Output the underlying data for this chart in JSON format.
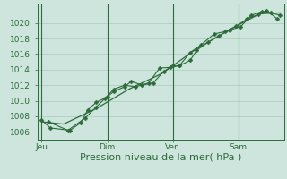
{
  "bg_color": "#cde5dc",
  "grid_color": "#b0cfc5",
  "line_color": "#2d6b3a",
  "xlabel": "Pression niveau de la mer( hPa )",
  "xlabel_fontsize": 8,
  "ylabel_ticks": [
    1006,
    1008,
    1010,
    1012,
    1014,
    1016,
    1018,
    1020
  ],
  "ylim": [
    1005.0,
    1022.5
  ],
  "xtick_labels": [
    "Jeu",
    "Dim",
    "Ven",
    "Sam"
  ],
  "xtick_positions": [
    0.0,
    3.0,
    6.0,
    9.0
  ],
  "line1_x": [
    0.0,
    0.4,
    1.3,
    1.8,
    2.1,
    2.5,
    3.0,
    3.3,
    3.8,
    4.1,
    4.6,
    5.1,
    5.6,
    6.0,
    6.3,
    6.8,
    7.1,
    7.6,
    8.1,
    8.6,
    9.1,
    9.6,
    10.1,
    10.5,
    10.9
  ],
  "line1_y": [
    1007.5,
    1006.5,
    1006.2,
    1007.2,
    1008.8,
    1009.8,
    1010.5,
    1011.2,
    1011.8,
    1012.5,
    1012.0,
    1012.3,
    1013.8,
    1014.5,
    1014.5,
    1015.2,
    1016.5,
    1017.5,
    1018.3,
    1019.1,
    1019.5,
    1021.0,
    1021.5,
    1021.3,
    1021.0
  ],
  "line2_x": [
    0.3,
    1.2,
    2.0,
    2.5,
    2.9,
    3.3,
    3.8,
    4.3,
    4.9,
    5.4,
    5.9,
    6.3,
    6.8,
    7.3,
    7.9,
    8.4,
    8.9,
    9.4,
    9.9,
    10.3,
    10.8
  ],
  "line2_y": [
    1007.3,
    1006.2,
    1007.8,
    1009.2,
    1010.3,
    1011.5,
    1012.0,
    1011.8,
    1012.3,
    1014.2,
    1014.3,
    1014.5,
    1016.2,
    1017.2,
    1018.6,
    1018.9,
    1019.6,
    1020.5,
    1021.1,
    1021.6,
    1020.5
  ],
  "line3_x": [
    0.0,
    1.0,
    2.5,
    4.0,
    5.5,
    7.0,
    8.5,
    10.0,
    10.9
  ],
  "line3_y": [
    1007.3,
    1007.0,
    1009.0,
    1011.5,
    1013.5,
    1016.5,
    1019.0,
    1021.2,
    1021.3
  ],
  "vline_positions": [
    0.0,
    3.0,
    6.0,
    9.0
  ],
  "xlim": [
    -0.2,
    11.1
  ],
  "figsize": [
    3.2,
    2.0
  ],
  "dpi": 100
}
